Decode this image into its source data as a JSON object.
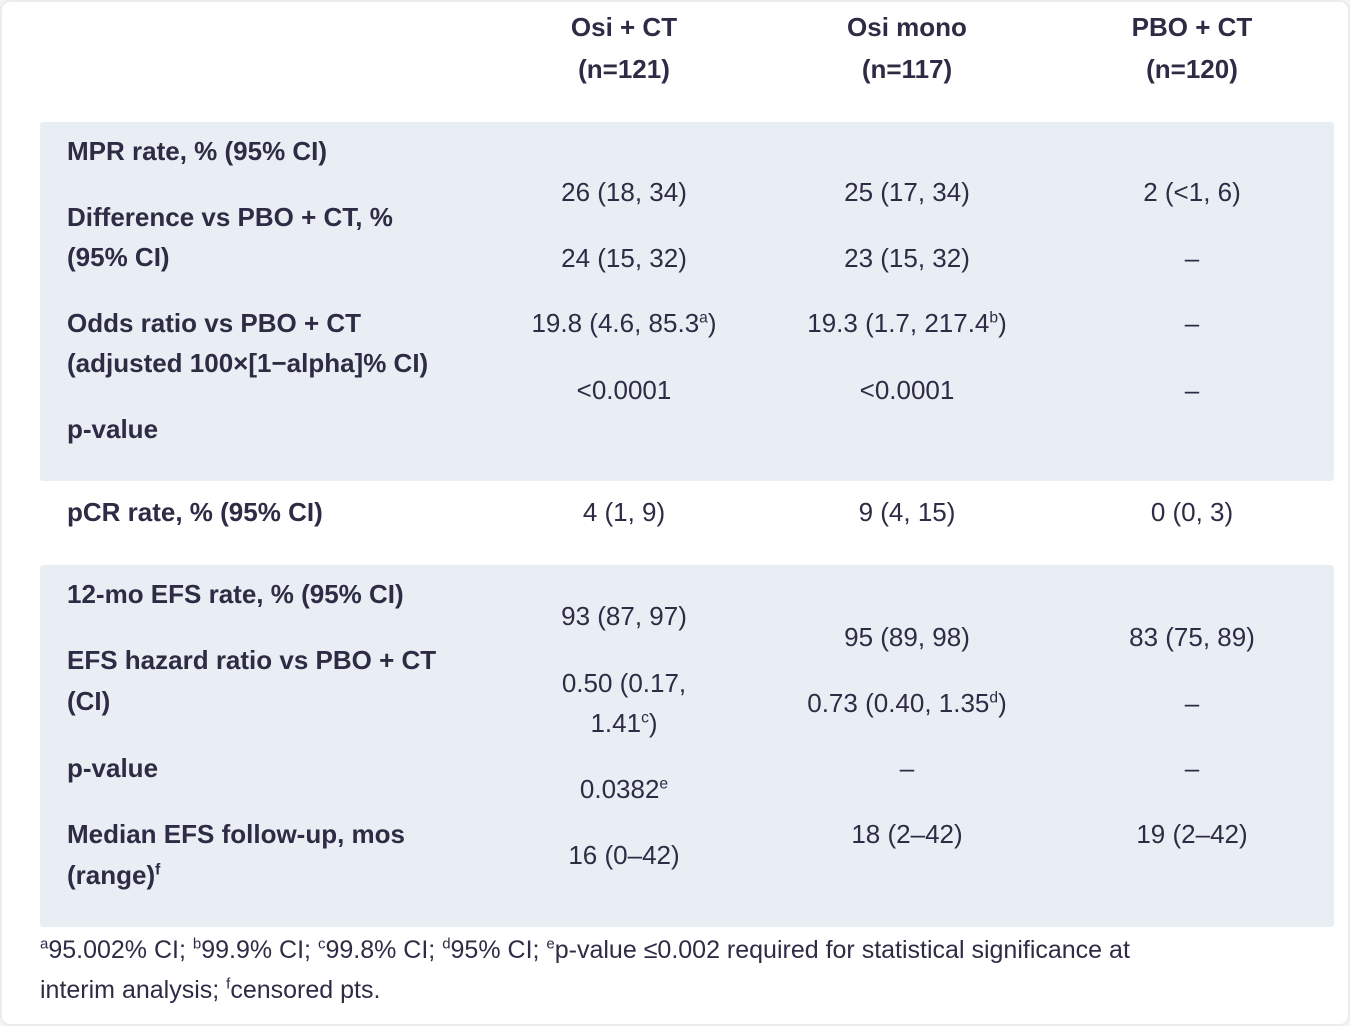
{
  "colors": {
    "section_background": "#e9edf4",
    "text": "#2e2c45",
    "page_background": "#ffffff"
  },
  "header": {
    "col1": {
      "title": "Osi + CT",
      "n": "(n=121)"
    },
    "col2": {
      "title": "Osi mono",
      "n": "(n=117)"
    },
    "col3": {
      "title": "PBO + CT",
      "n": "(n=120)"
    }
  },
  "mpr_section": {
    "mpr_rate": {
      "label": "MPR rate, % (95% CI)",
      "osi_ct": "26 (18, 34)",
      "osi_mono": "25 (17, 34)",
      "pbo_ct": "2 (<1, 6)"
    },
    "difference": {
      "label_line1": "Difference vs PBO + CT, %",
      "label_line2": "(95% CI)",
      "osi_ct": "24 (15, 32)",
      "osi_mono": "23 (15, 32)",
      "pbo_ct": "–"
    },
    "odds_ratio": {
      "label_line1": "Odds ratio vs PBO + CT",
      "label_line2": "(adjusted 100×[1−alpha]% CI)",
      "osi_ct": "19.8 (4.6, 85.3^a^)",
      "osi_mono": "19.3 (1.7, 217.4^b^)",
      "pbo_ct": "–"
    },
    "p_value": {
      "label": "p-value",
      "osi_ct": "<0.0001",
      "osi_mono": "<0.0001",
      "pbo_ct": "–"
    }
  },
  "pcr_row": {
    "label": "pCR rate, % (95% CI)",
    "osi_ct": "4 (1, 9)",
    "osi_mono": "9 (4, 15)",
    "pbo_ct": "0 (0, 3)"
  },
  "efs_section": {
    "efs_rate": {
      "label": "12-mo EFS rate, % (95% CI)",
      "osi_ct": "93 (87, 97)",
      "osi_mono": "95 (89, 98)",
      "pbo_ct": "83 (75, 89)"
    },
    "hazard_ratio": {
      "label_line1": "EFS hazard ratio vs PBO + CT",
      "label_line2": "(CI)",
      "osi_ct_line1": "0.50 (0.17,",
      "osi_ct_line2": "1.41^c^)",
      "osi_mono": "0.73 (0.40, 1.35^d^)",
      "pbo_ct": "–"
    },
    "p_value": {
      "label": "p-value",
      "osi_ct": "0.0382^e^",
      "osi_mono": "–",
      "pbo_ct": "–"
    },
    "median_followup": {
      "label_line1": "Median EFS follow-up, mos",
      "label_line2": "(range)^f^",
      "osi_ct": "16 (0–42)",
      "osi_mono": "18 (2–42)",
      "pbo_ct": "19 (2–42)"
    }
  },
  "footnotes": {
    "line1": "^a^95.002% CI; ^b^99.9% CI; ^c^99.8% CI; ^d^95% CI; ^e^p-value ≤0.002 required for statistical significance at",
    "line2": "interim analysis; ^f^censored pts."
  }
}
